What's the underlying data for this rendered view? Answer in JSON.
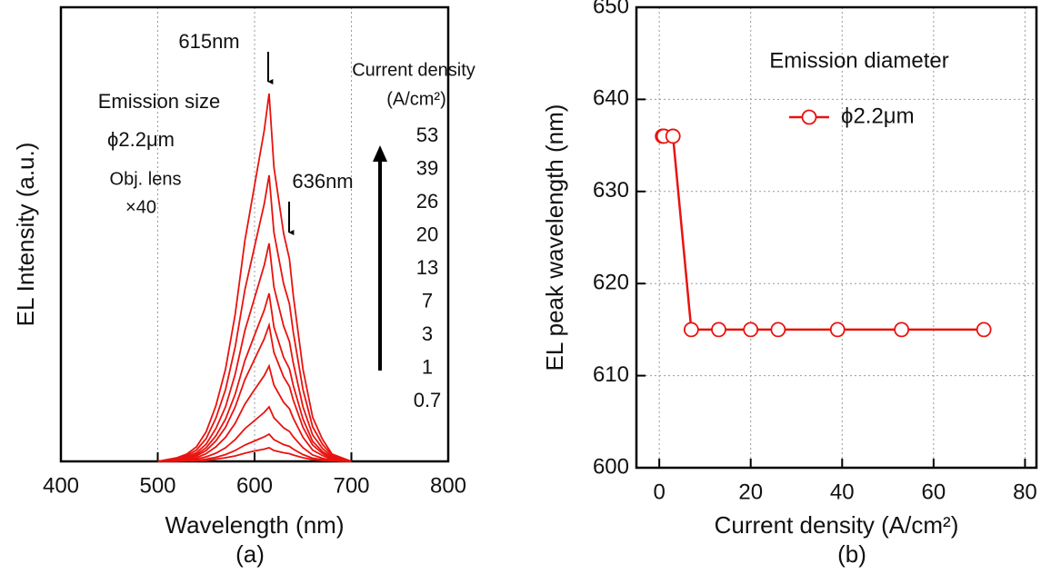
{
  "chart_data": [
    {
      "type": "line",
      "x_label": "Wavelength (nm)",
      "y_label": "EL Intensity (a.u.)",
      "caption": "(a)",
      "xlim": [
        400,
        800
      ],
      "xticks": [
        400,
        500,
        600,
        700,
        800
      ],
      "ylim": [
        0,
        100
      ],
      "grid": true,
      "legend_title": [
        "Current density",
        "(A/cm²)"
      ],
      "annotations": [
        "615nm",
        "636nm",
        "Emission size",
        "ϕ2.2μm",
        "Obj. lens",
        "×40"
      ],
      "x": [
        500,
        510,
        520,
        530,
        540,
        550,
        560,
        570,
        580,
        590,
        600,
        610,
        615,
        620,
        630,
        636,
        640,
        650,
        660,
        670,
        680,
        690,
        700
      ],
      "series": [
        {
          "name": "53",
          "color": "#e8130f",
          "values": [
            0,
            0.4,
            0.8,
            1.6,
            3.2,
            6.5,
            12.2,
            20.3,
            32.4,
            48.6,
            60.8,
            72.9,
            81,
            64.8,
            50.2,
            44.6,
            36.5,
            20.3,
            9.7,
            4.9,
            1.6,
            0.8,
            0
          ]
        },
        {
          "name": "39",
          "color": "#e8130f",
          "values": [
            0,
            0.3,
            0.6,
            1.3,
            2.5,
            5,
            9.5,
            15.8,
            25.2,
            37.8,
            47.3,
            56.7,
            63,
            50.4,
            39.1,
            34.7,
            28.4,
            15.8,
            7.6,
            3.8,
            1.3,
            0.6,
            0
          ]
        },
        {
          "name": "26",
          "color": "#e8130f",
          "values": [
            0,
            0.2,
            0.5,
            1,
            1.9,
            3.8,
            7.2,
            12,
            19.2,
            28.8,
            36,
            43.2,
            48,
            38.4,
            29.8,
            26.4,
            21.6,
            12,
            5.8,
            2.9,
            1,
            0.5,
            0
          ]
        },
        {
          "name": "20",
          "color": "#e8130f",
          "values": [
            0,
            0.2,
            0.4,
            0.7,
            1.5,
            3,
            5.6,
            9.3,
            14.8,
            22.2,
            27.8,
            33.3,
            37,
            29.6,
            22.9,
            20.4,
            16.7,
            9.3,
            4.4,
            2.2,
            0.7,
            0.4,
            0
          ]
        },
        {
          "name": "13",
          "color": "#e8130f",
          "values": [
            0,
            0.2,
            0.3,
            0.6,
            1.2,
            2.4,
            4.5,
            7.5,
            12,
            18,
            22.5,
            27,
            30,
            24,
            18.6,
            16.5,
            13.5,
            7.5,
            3.6,
            1.8,
            0.6,
            0.3,
            0
          ]
        },
        {
          "name": "7",
          "color": "#e8130f",
          "values": [
            0,
            0.1,
            0.2,
            0.4,
            0.8,
            1.7,
            3.2,
            5.3,
            8.4,
            12.6,
            15.8,
            18.9,
            21,
            16.8,
            13,
            11.6,
            9.5,
            5.3,
            2.5,
            1.3,
            0.4,
            0.2,
            0
          ]
        },
        {
          "name": "3",
          "color": "#e8130f",
          "values": [
            0,
            0.1,
            0.1,
            0.2,
            0.5,
            1,
            1.8,
            3,
            4.8,
            7.2,
            9,
            10.8,
            12,
            9.6,
            7.4,
            6.6,
            5.4,
            3,
            1.4,
            0.7,
            0.2,
            0.1,
            0
          ]
        },
        {
          "name": "1",
          "color": "#e8130f",
          "values": [
            0,
            0,
            0.1,
            0.1,
            0.2,
            0.5,
            0.9,
            1.5,
            2.4,
            3.6,
            4.5,
            5.4,
            6,
            4.8,
            3.7,
            3.3,
            2.7,
            1.5,
            0.7,
            0.4,
            0.1,
            0.1,
            0
          ]
        },
        {
          "name": "0.7",
          "color": "#e8130f",
          "values": [
            0,
            0,
            0,
            0.1,
            0.1,
            0.2,
            0.5,
            0.8,
            1.2,
            1.8,
            2.3,
            2.7,
            3,
            2.4,
            1.9,
            1.7,
            1.4,
            0.8,
            0.4,
            0.2,
            0.1,
            0,
            0
          ]
        }
      ]
    },
    {
      "type": "line",
      "x_label": "Current density (A/cm²)",
      "y_label": "EL peak wavelength (nm)",
      "caption": "(b)",
      "xlim": [
        -5,
        82.5
      ],
      "xticks": [
        0,
        20,
        40,
        60,
        80
      ],
      "ylim": [
        600,
        650
      ],
      "yticks": [
        600,
        610,
        620,
        630,
        640,
        650
      ],
      "grid": true,
      "legend_title": "Emission diameter",
      "legend": "upper right",
      "x": [
        0.7,
        1,
        3,
        7,
        13,
        20,
        26,
        39,
        53,
        71
      ],
      "series": [
        {
          "name": "ϕ2.2μm",
          "color": "#e8130f",
          "values": [
            636,
            636,
            636,
            615,
            615,
            615,
            615,
            615,
            615,
            615
          ]
        }
      ]
    }
  ]
}
